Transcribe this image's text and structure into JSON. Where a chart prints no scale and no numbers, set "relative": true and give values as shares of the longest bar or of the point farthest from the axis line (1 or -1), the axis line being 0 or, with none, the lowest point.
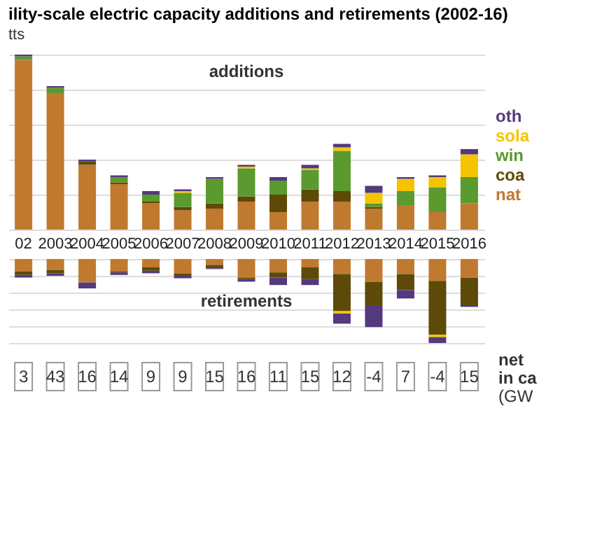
{
  "chart_data": [
    {
      "type": "bar",
      "title": "ility-scale electric capacity additions and retirements (2002-16)",
      "subtitle": "tts",
      "relative": true,
      "stacked": true,
      "grid": "y",
      "legend": "right",
      "annotations": [
        "additions"
      ],
      "categories": [
        "02",
        "2003",
        "2004",
        "2005",
        "2006",
        "2007",
        "2008",
        "2009",
        "2010",
        "2011",
        "2012",
        "2013",
        "2014",
        "2015",
        "2016"
      ],
      "series": [
        {
          "name": "nat",
          "color": "#c07a30",
          "values": [
            0.97,
            0.78,
            0.37,
            0.26,
            0.15,
            0.11,
            0.12,
            0.16,
            0.1,
            0.16,
            0.16,
            0.12,
            0.14,
            0.1,
            0.15
          ]
        },
        {
          "name": "coa",
          "color": "#5e4a08",
          "values": [
            0,
            0,
            0.02,
            0.01,
            0.01,
            0.02,
            0.03,
            0.03,
            0.1,
            0.07,
            0.06,
            0.01,
            0,
            0,
            0
          ]
        },
        {
          "name": "win",
          "color": "#5a9a2e",
          "values": [
            0.02,
            0.03,
            0,
            0.03,
            0.04,
            0.08,
            0.14,
            0.16,
            0.08,
            0.11,
            0.23,
            0.02,
            0.08,
            0.14,
            0.15
          ]
        },
        {
          "name": "sola",
          "color": "#f5c400",
          "values": [
            0,
            0,
            0,
            0,
            0,
            0.01,
            0,
            0.01,
            0,
            0.01,
            0.02,
            0.06,
            0.07,
            0.06,
            0.13
          ]
        },
        {
          "name": "oth",
          "color": "#54397e",
          "values": [
            0.01,
            0.01,
            0.01,
            0.01,
            0.02,
            0.01,
            0.01,
            0.01,
            0.02,
            0.02,
            0.02,
            0.04,
            0.01,
            0.01,
            0.03
          ]
        }
      ]
    },
    {
      "type": "bar",
      "relative": true,
      "stacked": true,
      "grid": "y",
      "tick_labels": false,
      "annotations": [
        "retirements"
      ],
      "categories": [
        "02",
        "2003",
        "2004",
        "2005",
        "2006",
        "2007",
        "2008",
        "2009",
        "2010",
        "2011",
        "2012",
        "2013",
        "2014",
        "2015",
        "2016"
      ],
      "series": [
        {
          "color": "#c07a30",
          "values": [
            -0.15,
            -0.13,
            -0.28,
            -0.15,
            -0.1,
            -0.17,
            -0.07,
            -0.22,
            -0.16,
            -0.1,
            -0.18,
            -0.27,
            -0.18,
            -0.26,
            -0.22
          ]
        },
        {
          "color": "#5e4a08",
          "values": [
            -0.04,
            -0.04,
            0,
            -0.01,
            -0.04,
            -0.03,
            -0.04,
            -0.02,
            -0.06,
            -0.14,
            -0.44,
            -0.28,
            -0.19,
            -0.64,
            -0.33
          ]
        },
        {
          "color": "#f5c400",
          "values": [
            0,
            0,
            0,
            0,
            0,
            0,
            0,
            0,
            0,
            0,
            -0.03,
            0,
            0,
            -0.03,
            0
          ]
        },
        {
          "color": "#54397e",
          "values": [
            -0.03,
            -0.03,
            -0.07,
            -0.03,
            -0.03,
            -0.03,
            -0.01,
            -0.03,
            -0.09,
            -0.07,
            -0.12,
            -0.26,
            -0.1,
            -0.07,
            -0.02
          ]
        }
      ]
    },
    {
      "type": "other",
      "data_labels": true,
      "annotations": [
        "net",
        "in ca",
        "(GW"
      ],
      "values": [
        3,
        43,
        16,
        14,
        9,
        9,
        15,
        16,
        11,
        15,
        12,
        -4,
        7,
        -4,
        15
      ]
    }
  ]
}
